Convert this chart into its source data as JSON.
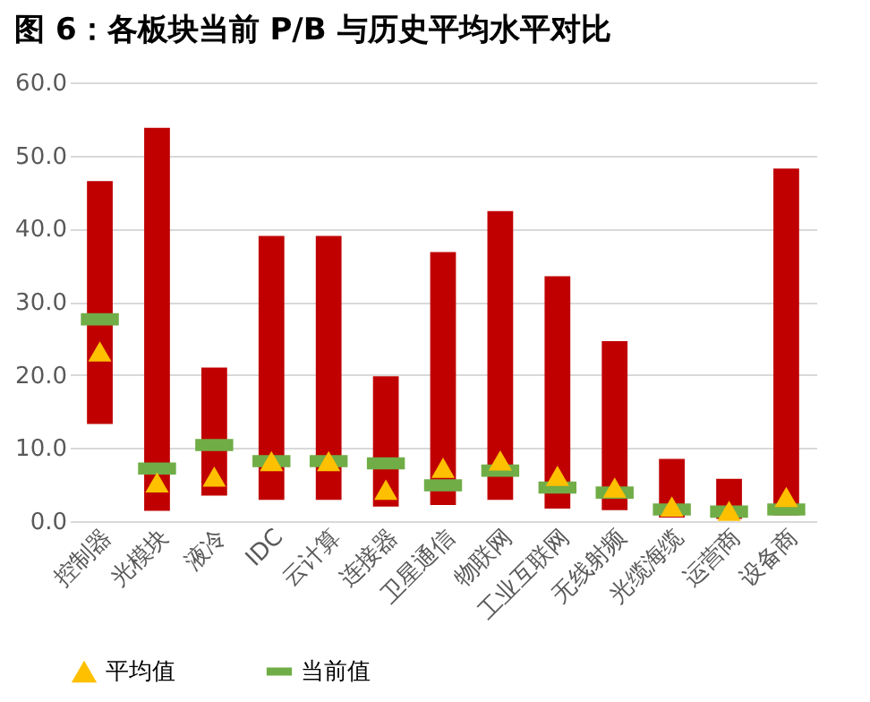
{
  "chart_data": {
    "type": "bar",
    "title": "图 6：各板块当前 P/B 与历史平均水平对比",
    "categories": [
      "控制器",
      "光模块",
      "液冷",
      "IDC",
      "云计算",
      "连接器",
      "卫星通信",
      "物联网",
      "工业互联网",
      "无线射频",
      "光缆海缆",
      "运营商",
      "设备商"
    ],
    "ylim": [
      0,
      60
    ],
    "yticks": [
      {
        "value": 0,
        "label": "0.0"
      },
      {
        "value": 10,
        "label": "10.0"
      },
      {
        "value": 20,
        "label": "20.0"
      },
      {
        "value": 30,
        "label": "30.0"
      },
      {
        "value": 40,
        "label": "40.0"
      },
      {
        "value": 50,
        "label": "50.0"
      },
      {
        "value": 60,
        "label": "60.0"
      }
    ],
    "grid": "y",
    "legend": "bottom",
    "series": [
      {
        "color": "#c00000",
        "base": [
          13.3,
          1.4,
          3.5,
          2.9,
          2.9,
          2.0,
          2.2,
          2.9,
          1.7,
          1.5,
          0.5,
          0.3,
          0.8
        ],
        "values": [
          33.2,
          52.4,
          17.5,
          36.1,
          36.1,
          17.8,
          34.6,
          39.5,
          31.8,
          23.1,
          8.0,
          5.5,
          47.4
        ]
      },
      {
        "type": "scatter",
        "name": "平均值",
        "color": "#ffc000",
        "marker": "triangle",
        "values": [
          23.2,
          5.3,
          6.1,
          8.2,
          8.2,
          4.3,
          7.3,
          8.3,
          6.2,
          4.6,
          2.0,
          1.4,
          3.3
        ]
      },
      {
        "type": "scatter",
        "name": "当前值",
        "color": "#70ad47",
        "marker": "square",
        "values": [
          27.6,
          7.2,
          10.4,
          8.2,
          8.2,
          7.9,
          4.9,
          6.9,
          4.6,
          3.9,
          1.6,
          1.3,
          1.6
        ]
      }
    ]
  }
}
